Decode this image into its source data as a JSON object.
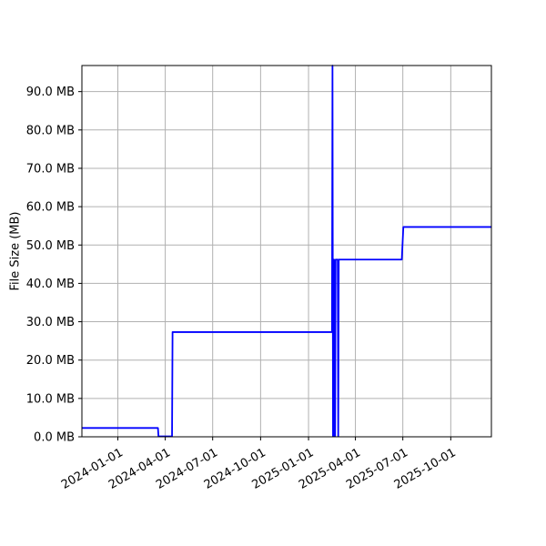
{
  "chart_data": {
    "type": "line",
    "title": "",
    "xlabel": "",
    "ylabel": "File Size (MB)",
    "x_tick_labels": [
      "2024-01-01",
      "2024-04-01",
      "2024-07-01",
      "2024-10-01",
      "2025-01-01",
      "2025-04-01",
      "2025-07-01",
      "2025-10-01"
    ],
    "y_tick_labels": [
      "0.0 MB",
      "10.0 MB",
      "20.0 MB",
      "30.0 MB",
      "40.0 MB",
      "50.0 MB",
      "60.0 MB",
      "70.0 MB",
      "80.0 MB",
      "90.0 MB"
    ],
    "y_tick_values": [
      0,
      10,
      20,
      30,
      40,
      50,
      60,
      70,
      80,
      90
    ],
    "xlim": [
      "2023-10-24",
      "2025-12-18"
    ],
    "ylim": [
      0,
      96.8
    ],
    "grid": true,
    "series": [
      {
        "color": "#0000ff",
        "x": [
          "2023-10-24",
          "2024-03-18",
          "2024-03-19",
          "2024-04-14",
          "2024-04-15",
          "2025-02-15",
          "2025-02-16",
          "2025-02-17",
          "2025-02-18",
          "2025-02-19",
          "2025-02-20",
          "2025-02-21",
          "2025-02-22",
          "2025-02-26",
          "2025-02-27",
          "2025-02-28",
          "2025-03-01",
          "2025-06-29",
          "2025-07-02",
          "2025-12-18"
        ],
        "y": [
          2.3,
          2.3,
          0.1,
          0.1,
          27.3,
          27.3,
          96.8,
          0,
          46.2,
          46.2,
          0,
          0,
          46.2,
          46.2,
          0,
          46.2,
          46.2,
          46.2,
          54.7,
          54.7
        ]
      }
    ]
  }
}
